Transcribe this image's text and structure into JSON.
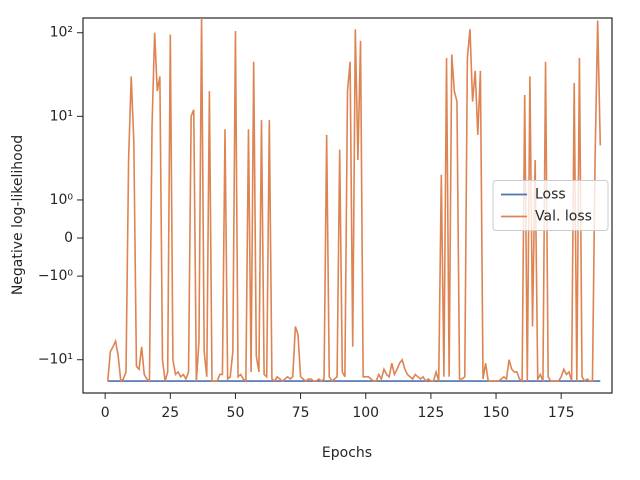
{
  "chart_data": {
    "type": "line",
    "xlabel": "Epochs",
    "ylabel": "Negative log-likelihood",
    "yscale": "symlog",
    "linthresh": 1,
    "linscale": 0.41,
    "legend": "center right",
    "xlim": [
      -8.5,
      194.5
    ],
    "xticks": [
      0,
      25,
      50,
      75,
      100,
      125,
      150,
      175
    ],
    "ylim": [
      -25,
      150
    ],
    "yticks": [
      {
        "value": 100,
        "label": "10²"
      },
      {
        "value": 10,
        "label": "10¹"
      },
      {
        "value": 1,
        "label": "10⁰"
      },
      0,
      {
        "value": -1,
        "label": "−10⁰"
      },
      {
        "value": -10,
        "label": "−10¹"
      }
    ],
    "x": [
      1,
      2,
      3,
      4,
      5,
      6,
      7,
      8,
      9,
      10,
      11,
      12,
      13,
      14,
      15,
      16,
      17,
      18,
      19,
      20,
      21,
      22,
      23,
      24,
      25,
      26,
      27,
      28,
      29,
      30,
      31,
      32,
      33,
      34,
      35,
      36,
      37,
      38,
      39,
      40,
      41,
      42,
      43,
      44,
      45,
      46,
      47,
      48,
      49,
      50,
      51,
      52,
      53,
      54,
      55,
      56,
      57,
      58,
      59,
      60,
      61,
      62,
      63,
      64,
      65,
      66,
      67,
      68,
      69,
      70,
      71,
      72,
      73,
      74,
      75,
      76,
      77,
      78,
      79,
      80,
      81,
      82,
      83,
      84,
      85,
      86,
      87,
      88,
      89,
      90,
      91,
      92,
      93,
      94,
      95,
      96,
      97,
      98,
      99,
      100,
      101,
      102,
      103,
      104,
      105,
      106,
      107,
      108,
      109,
      110,
      111,
      112,
      113,
      114,
      115,
      116,
      117,
      118,
      119,
      120,
      121,
      122,
      123,
      124,
      125,
      126,
      127,
      128,
      129,
      130,
      131,
      132,
      133,
      134,
      135,
      136,
      137,
      138,
      139,
      140,
      141,
      142,
      143,
      144,
      145,
      146,
      147,
      148,
      149,
      150,
      151,
      152,
      153,
      154,
      155,
      156,
      157,
      158,
      159,
      160,
      161,
      162,
      163,
      164,
      165,
      166,
      167,
      168,
      169,
      170,
      171,
      172,
      173,
      174,
      175,
      176,
      177,
      178,
      179,
      180,
      181,
      182,
      183,
      184,
      185,
      186,
      187,
      188,
      189,
      190
    ],
    "series": [
      {
        "name": "Loss",
        "color": "#4c72b0",
        "values": [
          -18,
          -18,
          -18,
          -18,
          -18,
          -18,
          -18,
          -18,
          -18,
          -18,
          -18,
          -18,
          -18,
          -18,
          -18,
          -18,
          -18,
          -18,
          -18,
          -18,
          -18,
          -18,
          -18,
          -18,
          -18,
          -18,
          -18,
          -18,
          -18,
          -18,
          -18,
          -18,
          -18,
          -18,
          -18,
          -18,
          -18,
          -18,
          -18,
          -18,
          -18,
          -18,
          -18,
          -18,
          -18,
          -18,
          -18,
          -18,
          -18,
          -18,
          -18,
          -18,
          -18,
          -18,
          -18,
          -18,
          -18,
          -18,
          -18,
          -18,
          -18,
          -18,
          -18,
          -18,
          -18,
          -18,
          -18,
          -18,
          -18,
          -18,
          -18,
          -18,
          -18,
          -18,
          -18,
          -18,
          -18,
          -18,
          -18,
          -18,
          -18,
          -18,
          -18,
          -18,
          -18,
          -18,
          -18,
          -18,
          -18,
          -18,
          -18,
          -18,
          -18,
          -18,
          -18,
          -18,
          -18,
          -18,
          -18,
          -18,
          -18,
          -18,
          -18,
          -18,
          -18,
          -18,
          -18,
          -18,
          -18,
          -18,
          -18,
          -18,
          -18,
          -18,
          -18,
          -18,
          -18,
          -18,
          -18,
          -18,
          -18,
          -18,
          -18,
          -18,
          -18,
          -18,
          -18,
          -18,
          -18,
          -18,
          -18,
          -18,
          -18,
          -18,
          -18,
          -18,
          -18,
          -18,
          -18,
          -18,
          -18,
          -18,
          -18,
          -18,
          -18,
          -18,
          -18,
          -18,
          -18,
          -18,
          -18,
          -18,
          -18,
          -18,
          -18,
          -18,
          -18,
          -18,
          -18,
          -18,
          -18,
          -18,
          -18,
          -18,
          -18,
          -18,
          -18,
          -18,
          -18,
          -18,
          -18,
          -18,
          -18,
          -18,
          -18,
          -18,
          -18,
          -18,
          -18,
          -18,
          -18,
          -18,
          -18,
          -18,
          -18,
          -18,
          -18,
          -18,
          -18,
          -18
        ]
      },
      {
        "name": "Val. loss",
        "color": "#dd8452",
        "values": [
          -18,
          -8,
          -7,
          -6,
          -9,
          -18,
          -17,
          -14,
          3,
          30,
          5,
          -12,
          -13,
          -7,
          -15,
          -17,
          -18,
          8,
          100,
          20,
          30,
          -10,
          -18,
          -14,
          95,
          -10,
          -15,
          -14,
          -16,
          -15,
          -17,
          -14,
          10,
          12,
          -18,
          -6,
          150,
          -8,
          -16,
          20,
          -18,
          -18,
          -18,
          -15,
          -15,
          7,
          -17,
          -16,
          -8,
          105,
          -16,
          -15,
          -17,
          -18,
          7,
          -14,
          45,
          -9,
          -14,
          9,
          -15,
          -16,
          9,
          -17,
          -18,
          -16,
          -17,
          -18,
          -17,
          -16,
          -17,
          -16,
          -4,
          -5,
          -16,
          -17,
          -18,
          -17,
          -17,
          -18,
          -18,
          -17,
          -18,
          -17,
          6,
          -16,
          -18,
          -17,
          -16,
          4,
          -14,
          -16,
          20,
          45,
          -7,
          110,
          3,
          80,
          -16,
          -16,
          -16,
          -17,
          -18,
          -18,
          -15,
          -17,
          -13,
          -15,
          -16,
          -11,
          -15,
          -13,
          -11,
          -10,
          -13,
          -15,
          -16,
          -17,
          -15,
          -16,
          -17,
          -16,
          -18,
          -17,
          -18,
          -18,
          -14,
          -18,
          2,
          -16,
          50,
          -16,
          55,
          20,
          15,
          -17,
          -17,
          -16,
          50,
          110,
          15,
          35,
          6,
          35,
          -17,
          -11,
          -18,
          -18,
          -18,
          -18,
          -18,
          -17,
          -16,
          -17,
          -10,
          -13,
          -14,
          -14,
          -17,
          -18,
          18,
          -18,
          30,
          -4,
          3,
          -17,
          -15,
          -18,
          45,
          -16,
          -18,
          -18,
          -18,
          -18,
          -16,
          -13,
          -15,
          -14,
          -18,
          25,
          -18,
          50,
          -16,
          -18,
          -17,
          -18,
          -18,
          3,
          140,
          4.5
        ]
      }
    ]
  }
}
